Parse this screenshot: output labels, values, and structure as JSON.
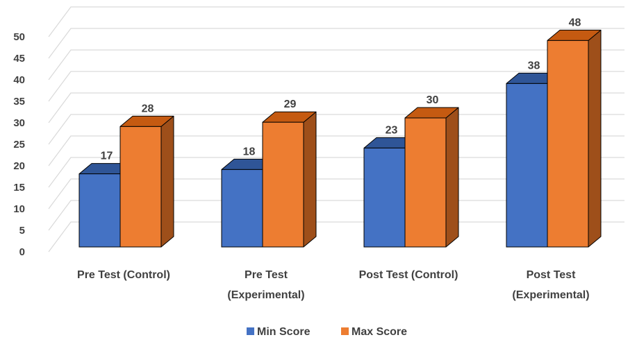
{
  "chart_data": {
    "type": "bar",
    "style": "3d-clustered-column",
    "categories": [
      [
        "Pre Test (Control)"
      ],
      [
        "Pre Test",
        "(Experimental)"
      ],
      [
        "Post Test (Control)"
      ],
      [
        "Post Test",
        "(Experimental)"
      ]
    ],
    "series": [
      {
        "name": "Min Score",
        "values": [
          17,
          18,
          23,
          38
        ],
        "color": "#4472C4",
        "side_color": "#2F5597",
        "top_color": "#2F5597"
      },
      {
        "name": "Max Score",
        "values": [
          28,
          29,
          30,
          48
        ],
        "color": "#ED7D31",
        "side_color": "#9E4F1A",
        "top_color": "#C55A11"
      }
    ],
    "y_ticks": [
      "0",
      "5",
      "10",
      "15",
      "20",
      "25",
      "30",
      "35",
      "40",
      "45",
      "50"
    ],
    "ylim": [
      0,
      55
    ],
    "grid": true,
    "data_labels": true,
    "legend_position": "bottom"
  }
}
